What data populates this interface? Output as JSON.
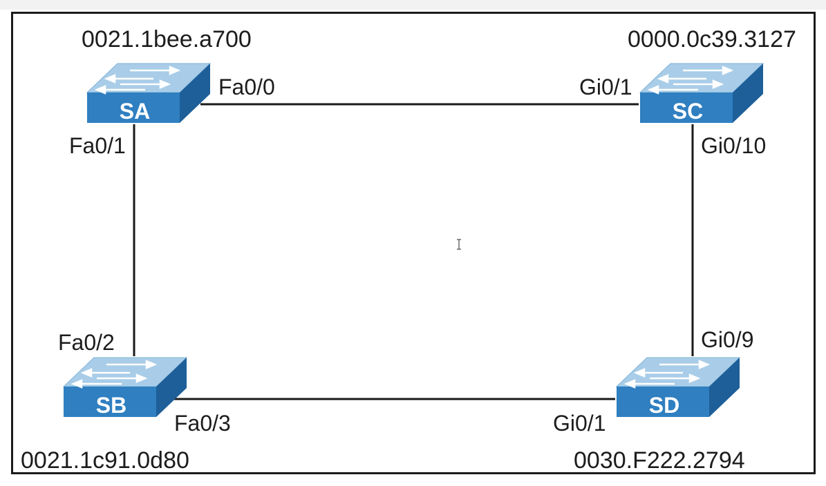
{
  "switches": {
    "sa": {
      "name": "SA",
      "mac": "0021.1bee.a700"
    },
    "sb": {
      "name": "SB",
      "mac": "0021.1c91.0d80"
    },
    "sc": {
      "name": "SC",
      "mac": "0000.0c39.3127"
    },
    "sd": {
      "name": "SD",
      "mac": "0030.F222.2794"
    }
  },
  "ports": {
    "sa_sc": "Fa0/0",
    "sa_sb": "Fa0/1",
    "sb_sa": "Fa0/2",
    "sb_sd": "Fa0/3",
    "sc_sa": "Gi0/1",
    "sc_sd": "Gi0/10",
    "sd_sc": "Gi0/9",
    "sd_sb": "Gi0/1"
  },
  "colors": {
    "switch_top": "#a9cde8",
    "switch_front": "#2f7fc1",
    "switch_side": "#1e5f99",
    "link": "#1a1a1a"
  }
}
